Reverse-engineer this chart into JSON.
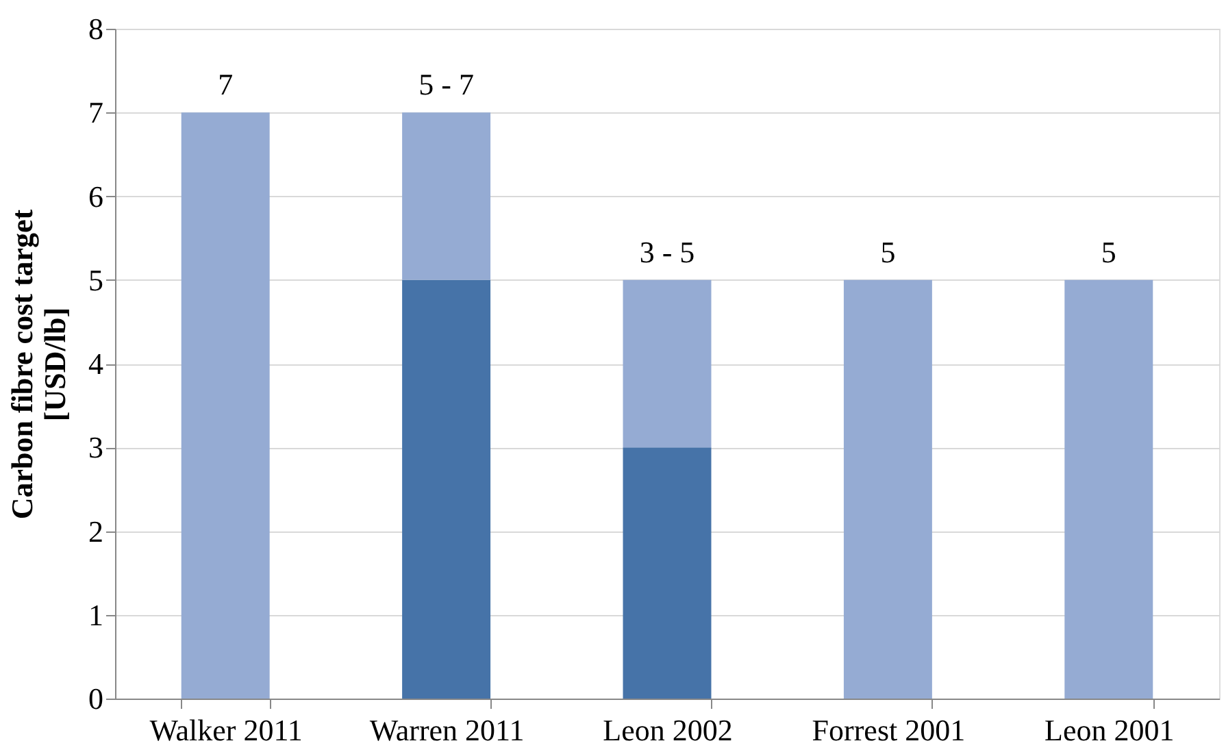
{
  "chart_data": {
    "type": "bar",
    "stacked": true,
    "ylabel": "Carbon fibre cost target [USD/lb]",
    "categories": [
      "Walker 2011",
      "Warren 2011",
      "Leon 2002",
      "Forrest 2001",
      "Leon 2001"
    ],
    "series": [
      {
        "color": "#4673a8",
        "values": [
          null,
          5,
          3,
          null,
          null
        ]
      },
      {
        "color": "#95abd3",
        "values": [
          7,
          2,
          2,
          5,
          5
        ]
      }
    ],
    "totals": [
      "7",
      "5 - 7",
      "3 - 5",
      "5",
      "5"
    ],
    "ylim": [
      0,
      8
    ],
    "yticks": [
      0,
      1,
      2,
      3,
      4,
      5,
      6,
      7,
      8
    ],
    "grid": "y"
  }
}
